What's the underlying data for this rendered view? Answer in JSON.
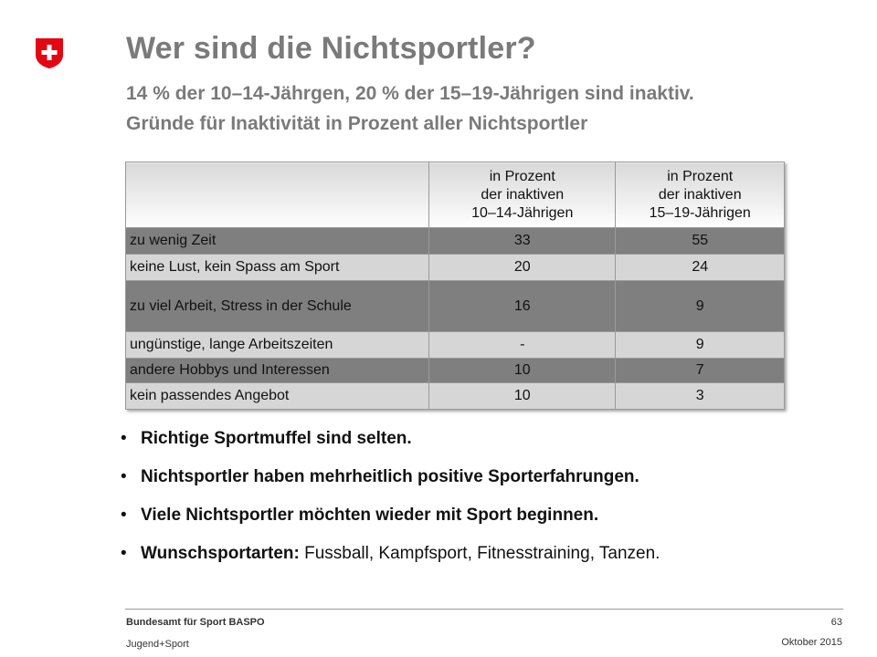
{
  "logo": {
    "icon": "swiss-cross-icon",
    "color": "#e30613"
  },
  "header": {
    "title": "Wer sind die Nichtsportler?",
    "subtitle1": "14 % der 10–14-Jährgen, 20 % der 15–19-Jährigen sind inaktiv.",
    "subtitle2": "Gründe für Inaktivität in Prozent aller Nichtsportler"
  },
  "table": {
    "columns": [
      {
        "line1": "in Prozent",
        "line2": "der inaktiven",
        "line3": "10–14-Jährigen"
      },
      {
        "line1": "in Prozent",
        "line2": "der inaktiven",
        "line3": "15–19-Jährigen"
      }
    ],
    "rows": [
      {
        "label": "zu wenig Zeit",
        "v1": "33",
        "v2": "55"
      },
      {
        "label": "keine Lust, kein Spass am Sport",
        "v1": "20",
        "v2": "24"
      },
      {
        "label": "zu viel Arbeit, Stress in der Schule",
        "v1": "16",
        "v2": "9"
      },
      {
        "label": "ungünstige, lange Arbeitszeiten",
        "v1": "-",
        "v2": "9"
      },
      {
        "label": "andere Hobbys und Interessen",
        "v1": "10",
        "v2": "7"
      },
      {
        "label": "kein passendes Angebot",
        "v1": "10",
        "v2": "3"
      }
    ]
  },
  "bullets": [
    {
      "bold": "Richtige Sportmuffel sind selten.",
      "rest": ""
    },
    {
      "bold": "Nichtsportler haben mehrheitlich positive Sporterfahrungen.",
      "rest": ""
    },
    {
      "bold": "Viele Nichtsportler möchten wieder mit Sport beginnen.",
      "rest": ""
    },
    {
      "bold": "Wunschsportarten:",
      "rest": " Fussball, Kampfsport, Fitnesstraining, Tanzen."
    }
  ],
  "footer": {
    "org": "Bundesamt für Sport BASPO",
    "unit": "Jugend+Sport",
    "page": "63",
    "date": "Oktober 2015"
  }
}
